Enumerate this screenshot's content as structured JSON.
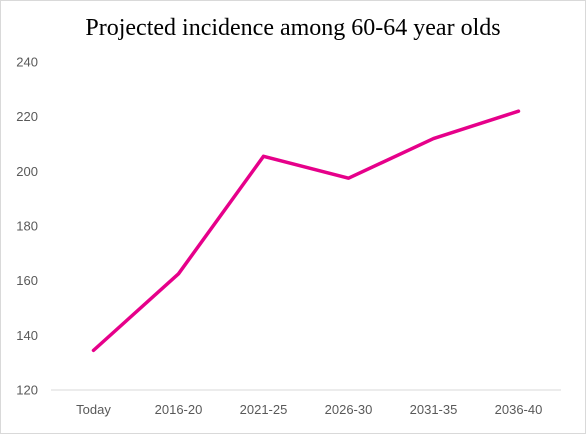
{
  "chart_data": {
    "type": "line",
    "title": "Projected incidence among 60-64 year olds",
    "xlabel": "",
    "ylabel": "",
    "categories": [
      "Today",
      "2016-20",
      "2021-25",
      "2026-30",
      "2031-35",
      "2036-40"
    ],
    "series": [
      {
        "values": [
          134.5,
          162.5,
          205.5,
          197.5,
          212,
          222
        ]
      }
    ],
    "ylim": [
      120,
      240
    ],
    "yticks": [
      120,
      140,
      160,
      180,
      200,
      220,
      240
    ],
    "grid": false,
    "legend": "none",
    "colors": {
      "line": "#e6008a",
      "axis": "#d9d9d9",
      "text": "#595959"
    }
  }
}
